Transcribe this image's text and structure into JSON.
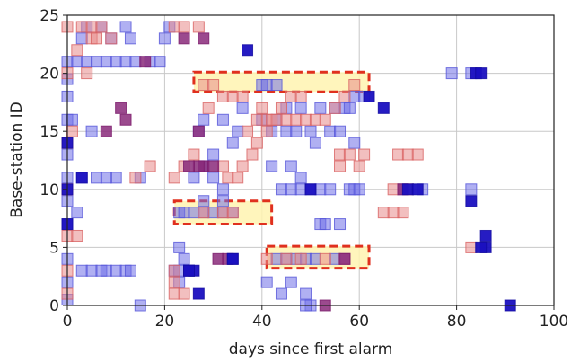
{
  "chart_data": {
    "type": "scatter",
    "title": "",
    "xlabel": "days since first alarm",
    "ylabel": "Base-station ID",
    "xlim": [
      0,
      100
    ],
    "ylim": [
      0,
      25
    ],
    "x_ticks": [
      0,
      20,
      40,
      60,
      80,
      100
    ],
    "y_ticks": [
      0,
      5,
      10,
      15,
      20,
      25
    ],
    "grid": true,
    "colors": {
      "blue_marker": "#6f6fe8",
      "red_marker": "#e88a8a",
      "purple_marker": "#8a2a7a",
      "dark_blue_marker": "#1a10c0",
      "highlight_fill": "#fff3b0",
      "highlight_border": "#e0301e"
    },
    "series": [
      {
        "values": [
          [
            0,
            0.5
          ],
          [
            0,
            2
          ],
          [
            0,
            4
          ],
          [
            0,
            7
          ],
          [
            0,
            9
          ],
          [
            0,
            11
          ],
          [
            0,
            13
          ],
          [
            0,
            16
          ],
          [
            0,
            18
          ],
          [
            0,
            19.5
          ],
          [
            0,
            21
          ],
          [
            2,
            8
          ],
          [
            3,
            3
          ],
          [
            5,
            3
          ],
          [
            7,
            3
          ],
          [
            8,
            3
          ],
          [
            10,
            3
          ],
          [
            12,
            3
          ],
          [
            13,
            3
          ],
          [
            2,
            21
          ],
          [
            4,
            21
          ],
          [
            6,
            21
          ],
          [
            8,
            21
          ],
          [
            10,
            21
          ],
          [
            12,
            21
          ],
          [
            14,
            21
          ],
          [
            17,
            21
          ],
          [
            19,
            21
          ],
          [
            3,
            23
          ],
          [
            4,
            24
          ],
          [
            7,
            24
          ],
          [
            9,
            23
          ],
          [
            12,
            24
          ],
          [
            13,
            23
          ],
          [
            20,
            23
          ],
          [
            21,
            24
          ],
          [
            5,
            15
          ],
          [
            1,
            16
          ],
          [
            10,
            11
          ],
          [
            3,
            11
          ],
          [
            6,
            11
          ],
          [
            8,
            11
          ],
          [
            15,
            0
          ],
          [
            15,
            11
          ],
          [
            23,
            5
          ],
          [
            24,
            4
          ],
          [
            22,
            3
          ],
          [
            23,
            3
          ],
          [
            25,
            3
          ],
          [
            23,
            2
          ],
          [
            28,
            16
          ],
          [
            27,
            15
          ],
          [
            32,
            16
          ],
          [
            35,
            15
          ],
          [
            34,
            14
          ],
          [
            36,
            17
          ],
          [
            30,
            13
          ],
          [
            28,
            12
          ],
          [
            30,
            11
          ],
          [
            26,
            11
          ],
          [
            32,
            10
          ],
          [
            32,
            9
          ],
          [
            28,
            9
          ],
          [
            42,
            12
          ],
          [
            44,
            10
          ],
          [
            46,
            10
          ],
          [
            48,
            10
          ],
          [
            50,
            10
          ],
          [
            52,
            10
          ],
          [
            54,
            10
          ],
          [
            58,
            10
          ],
          [
            59,
            10
          ],
          [
            60,
            10
          ],
          [
            40,
            19
          ],
          [
            41,
            19
          ],
          [
            43,
            19
          ],
          [
            45,
            17
          ],
          [
            48,
            17
          ],
          [
            52,
            17
          ],
          [
            55,
            17
          ],
          [
            57,
            17
          ],
          [
            42,
            15
          ],
          [
            45,
            15
          ],
          [
            47,
            15
          ],
          [
            50,
            15
          ],
          [
            54,
            15
          ],
          [
            56,
            15
          ],
          [
            40,
            16
          ],
          [
            43,
            16
          ],
          [
            51,
            14
          ],
          [
            59,
            14
          ],
          [
            46,
            12
          ],
          [
            48,
            11
          ],
          [
            52,
            7
          ],
          [
            53,
            7
          ],
          [
            56,
            7
          ],
          [
            23,
            8
          ],
          [
            24,
            8
          ],
          [
            26,
            8
          ],
          [
            28,
            8
          ],
          [
            30,
            8
          ],
          [
            32,
            8
          ],
          [
            34,
            8
          ],
          [
            43,
            4
          ],
          [
            45,
            4
          ],
          [
            47,
            4
          ],
          [
            49,
            4
          ],
          [
            51,
            4
          ],
          [
            55,
            4
          ],
          [
            57,
            4
          ],
          [
            41,
            2
          ],
          [
            44,
            1
          ],
          [
            46,
            2
          ],
          [
            49,
            1
          ],
          [
            50,
            0
          ],
          [
            49,
            0
          ],
          [
            58,
            17
          ],
          [
            59,
            18
          ],
          [
            61,
            18
          ],
          [
            69,
            10
          ],
          [
            73,
            10
          ],
          [
            79,
            20
          ],
          [
            83,
            20
          ],
          [
            83,
            10
          ]
        ]
      },
      {
        "values": [
          [
            0,
            1
          ],
          [
            0,
            3
          ],
          [
            0,
            6
          ],
          [
            0,
            10
          ],
          [
            0,
            14
          ],
          [
            0,
            20
          ],
          [
            0,
            24
          ],
          [
            1,
            15
          ],
          [
            2,
            6
          ],
          [
            2,
            22
          ],
          [
            5,
            23
          ],
          [
            6,
            23
          ],
          [
            9,
            23
          ],
          [
            3,
            24
          ],
          [
            5,
            24
          ],
          [
            7,
            24
          ],
          [
            4,
            20
          ],
          [
            14,
            11
          ],
          [
            17,
            12
          ],
          [
            22,
            11
          ],
          [
            24,
            12
          ],
          [
            26,
            13
          ],
          [
            22,
            24
          ],
          [
            24,
            24
          ],
          [
            27,
            24
          ],
          [
            22,
            3
          ],
          [
            22,
            2
          ],
          [
            22,
            1
          ],
          [
            24,
            1
          ],
          [
            28,
            19
          ],
          [
            30,
            19
          ],
          [
            32,
            18
          ],
          [
            34,
            18
          ],
          [
            36,
            18
          ],
          [
            29,
            17
          ],
          [
            32,
            12
          ],
          [
            33,
            11
          ],
          [
            35,
            11
          ],
          [
            36,
            12
          ],
          [
            38,
            13
          ],
          [
            39,
            14
          ],
          [
            37,
            15
          ],
          [
            39,
            16
          ],
          [
            40,
            17
          ],
          [
            41,
            16
          ],
          [
            43,
            16
          ],
          [
            45,
            16
          ],
          [
            47,
            16
          ],
          [
            49,
            16
          ],
          [
            51,
            16
          ],
          [
            53,
            16
          ],
          [
            55,
            17
          ],
          [
            57,
            18
          ],
          [
            59,
            19
          ],
          [
            42,
            16
          ],
          [
            41,
            15
          ],
          [
            44,
            17
          ],
          [
            46,
            18
          ],
          [
            48,
            18
          ],
          [
            28,
            8
          ],
          [
            32,
            8
          ],
          [
            34,
            8
          ],
          [
            41,
            4
          ],
          [
            45,
            4
          ],
          [
            48,
            4
          ],
          [
            53,
            4
          ],
          [
            57,
            4
          ],
          [
            56,
            12
          ],
          [
            56,
            13
          ],
          [
            58,
            13
          ],
          [
            60,
            12
          ],
          [
            61,
            13
          ],
          [
            68,
            13
          ],
          [
            70,
            13
          ],
          [
            72,
            13
          ],
          [
            65,
            8
          ],
          [
            67,
            8
          ],
          [
            69,
            8
          ],
          [
            67,
            10
          ],
          [
            70,
            10
          ],
          [
            83,
            5
          ]
        ]
      },
      {
        "values": [
          [
            16,
            21
          ],
          [
            11,
            17
          ],
          [
            12,
            16
          ],
          [
            8,
            15
          ],
          [
            27,
            15
          ],
          [
            28,
            12
          ],
          [
            27,
            12
          ],
          [
            25,
            12
          ],
          [
            28,
            23
          ],
          [
            24,
            23
          ],
          [
            31,
            4
          ],
          [
            33,
            4
          ],
          [
            57,
            4
          ],
          [
            53,
            0
          ],
          [
            30,
            12
          ],
          [
            69,
            10
          ]
        ]
      },
      {
        "values": [
          [
            0,
            14
          ],
          [
            0,
            10
          ],
          [
            0,
            7
          ],
          [
            3,
            11
          ],
          [
            37,
            22
          ],
          [
            34,
            4
          ],
          [
            25,
            3
          ],
          [
            26,
            3
          ],
          [
            27,
            1
          ],
          [
            25,
            3
          ],
          [
            50,
            10
          ],
          [
            62,
            18
          ],
          [
            65,
            17
          ],
          [
            70,
            10
          ],
          [
            72,
            10
          ],
          [
            84,
            20
          ],
          [
            85,
            20
          ],
          [
            83,
            9
          ],
          [
            86,
            6
          ],
          [
            86,
            5
          ],
          [
            85,
            5
          ],
          [
            91,
            0
          ],
          [
            34,
            4
          ]
        ]
      }
    ],
    "highlights": [
      {
        "x_start": 26,
        "x_end": 62,
        "y_start": 18.4,
        "y_end": 20.1
      },
      {
        "x_start": 22,
        "x_end": 42,
        "y_start": 7.0,
        "y_end": 9.0
      },
      {
        "x_start": 41,
        "x_end": 62,
        "y_start": 3.2,
        "y_end": 5.1
      }
    ]
  }
}
